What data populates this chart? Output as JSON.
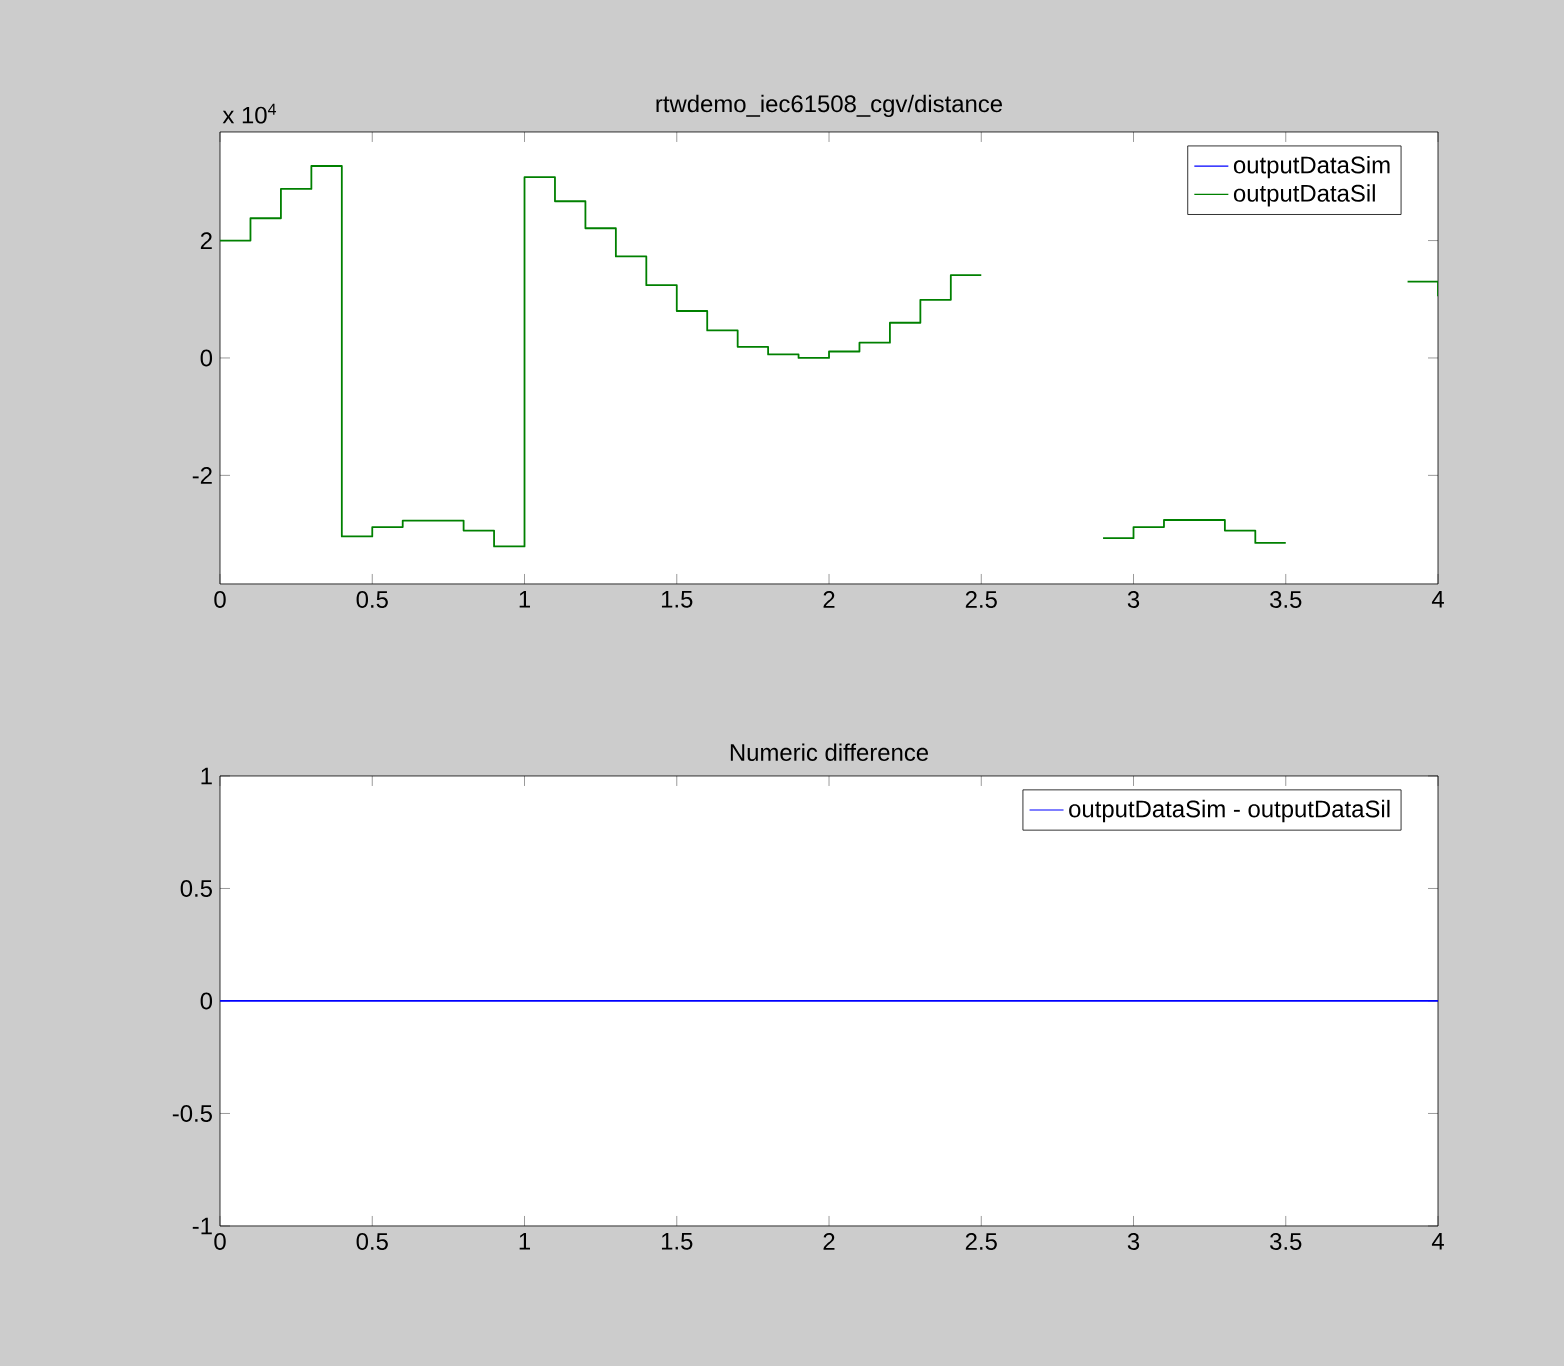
{
  "chart_data": [
    {
      "type": "step",
      "title": "rtwdemo_iec61508_cgv/distance",
      "annotations": [
        "x 10$^{4}$"
      ],
      "x": [
        0,
        0.1,
        0.2,
        0.3,
        0.4,
        0.5,
        0.6,
        0.7,
        0.8,
        0.9,
        1.0,
        1.1,
        1.2,
        1.3,
        1.4,
        1.5,
        1.6,
        1.7,
        1.8,
        1.9,
        2.0,
        2.1,
        2.2,
        2.3,
        2.4,
        2.5,
        2.6,
        2.7,
        2.8,
        2.9,
        3.0,
        3.1,
        3.2,
        3.3,
        3.4,
        3.5,
        3.6,
        3.7,
        3.8,
        3.9,
        4.0
      ],
      "series": [
        {
          "name": "outputDataSim",
          "color": "#0000ff",
          "values": [
            null,
            null,
            null,
            null,
            null,
            null,
            null,
            null,
            null,
            null,
            null,
            null,
            null,
            null,
            null,
            null,
            null,
            null,
            null,
            null,
            null,
            null,
            null,
            null,
            null,
            null,
            null,
            null,
            null,
            null,
            null,
            null,
            null,
            null,
            null,
            null,
            null,
            null,
            null,
            null,
            null
          ]
        },
        {
          "name": "outputDataSil",
          "color": "#008000",
          "values": [
            2.0,
            2.38,
            2.88,
            3.27,
            -3.04,
            -2.88,
            -2.77,
            -2.77,
            -2.94,
            -3.21,
            3.08,
            2.67,
            2.21,
            1.73,
            1.24,
            0.8,
            0.47,
            0.19,
            0.06,
            0,
            0.11,
            0.26,
            0.6,
            0.99,
            1.41,
            null,
            null,
            null,
            null,
            -3.07,
            -2.88,
            -2.76,
            -2.76,
            -2.94,
            -3.15,
            null,
            null,
            null,
            null,
            1.3,
            1.05
          ]
        }
      ],
      "xlim": [
        0,
        4
      ],
      "xticks": [
        0,
        0.5,
        1,
        1.5,
        2,
        2.5,
        3,
        3.5,
        4
      ],
      "ylim": [
        -3.85,
        3.85
      ],
      "yticks": [
        -2,
        0,
        2
      ],
      "legend": "top right"
    },
    {
      "type": "line",
      "title": "Numeric difference",
      "x": [
        0,
        4
      ],
      "series": [
        {
          "name": "outputDataSim - outputDataSil",
          "color": "#0000ff",
          "values": [
            0,
            0
          ]
        }
      ],
      "xlim": [
        0,
        4
      ],
      "xticks": [
        0,
        0.5,
        1,
        1.5,
        2,
        2.5,
        3,
        3.5,
        4
      ],
      "ylim": [
        -1,
        1
      ],
      "yticks": [
        -1,
        -0.5,
        0,
        0.5,
        1
      ],
      "legend": "top right"
    }
  ]
}
